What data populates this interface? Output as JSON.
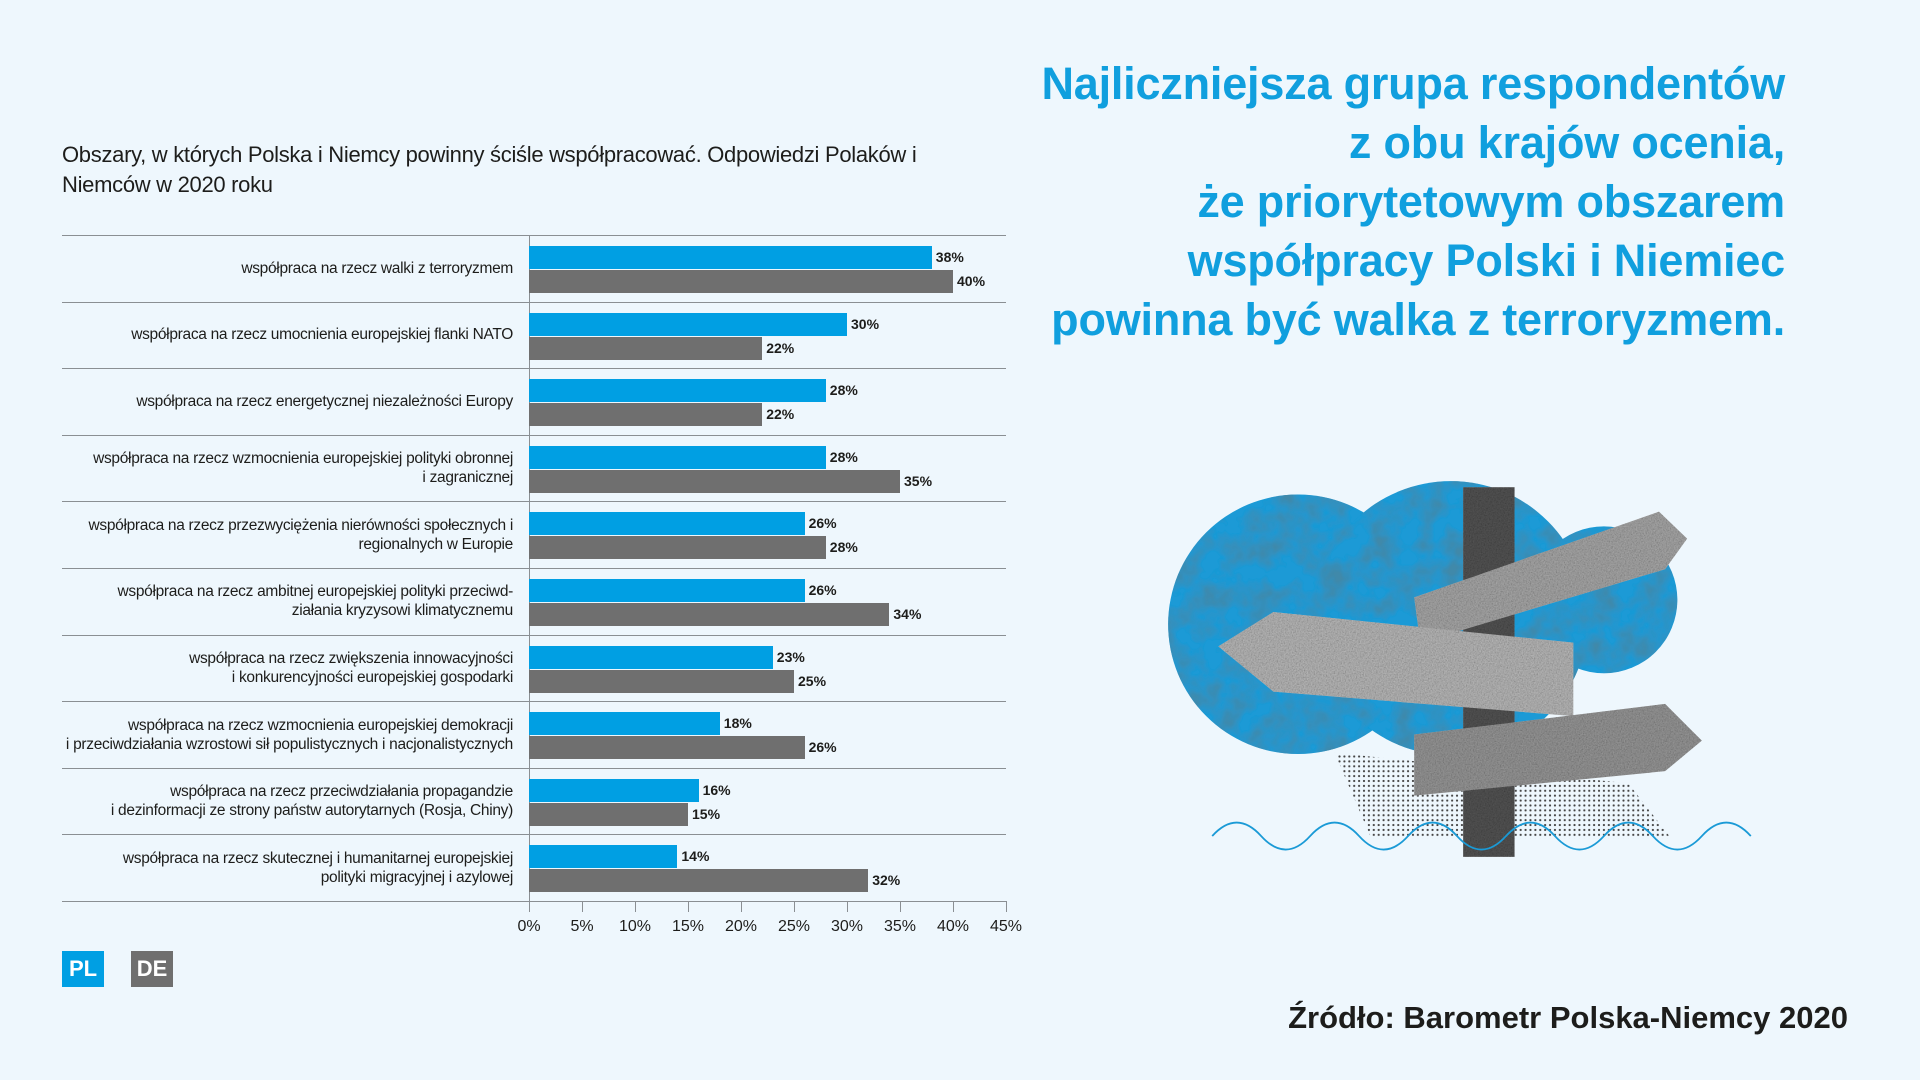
{
  "title": "Obszary, w których Polska i Niemcy powinny ściśle współpracować. Odpowiedzi Polaków i Niemców w 2020 roku",
  "headline": [
    "Najliczniejsza grupa respondentów",
    "z obu krajów ocenia,",
    "że priorytetowym obszarem",
    "współpracy Polski i Niemiec",
    "powinna być walka z terroryzmem."
  ],
  "source": "Źródło: Barometr Polska-Niemcy 2020",
  "colors": {
    "pl": "#009fe3",
    "de": "#6f6f6f",
    "headline": "#109fde"
  },
  "chart_data": {
    "type": "bar",
    "orientation": "horizontal",
    "title": "Obszary, w których Polska i Niemcy powinny ściśle współpracować. Odpowiedzi Polaków i Niemców w 2020 roku",
    "categories": [
      [
        "współpraca na rzecz walki z terroryzmem"
      ],
      [
        "współpraca na rzecz umocnienia europejskiej flanki NATO"
      ],
      [
        "współpraca na rzecz energetycznej niezależności Europy"
      ],
      [
        "współpraca na rzecz wzmocnienia europejskiej polityki obronnej",
        "i zagranicznej"
      ],
      [
        "współpraca na rzecz przezwyciężenia nierówności społecznych i",
        "regionalnych w Europie"
      ],
      [
        "współpraca na rzecz ambitnej europejskiej polityki przeciwd-",
        "ziałania kryzysowi klimatycznemu"
      ],
      [
        "współpraca na rzecz zwiększenia innowacyjności",
        "i konkurencyjności europejskiej gospodarki"
      ],
      [
        "współpraca na rzecz wzmocnienia europejskiej demokracji",
        "i przeciwdziałania wzrostowi sił populistycznych i nacjonalistycznych"
      ],
      [
        "współpraca na rzecz przeciwdziałania propagandzie",
        "i dezinformacji ze strony państw autorytarnych (Rosja, Chiny)"
      ],
      [
        "współpraca na rzecz skutecznej i humanitarnej europejskiej",
        "polityki migracyjnej i azylowej"
      ]
    ],
    "series": [
      {
        "name": "PL",
        "values": [
          38,
          30,
          28,
          28,
          26,
          26,
          23,
          18,
          16,
          14
        ]
      },
      {
        "name": "DE",
        "values": [
          40,
          22,
          22,
          35,
          28,
          34,
          25,
          26,
          15,
          32
        ]
      }
    ],
    "xlim": [
      0,
      45
    ],
    "xticks": [
      "0%",
      "5%",
      "10%",
      "15%",
      "20%",
      "25%",
      "30%",
      "35%",
      "40%",
      "45%"
    ],
    "legend": [
      "PL",
      "DE"
    ],
    "legend_position": "bottom-left"
  }
}
